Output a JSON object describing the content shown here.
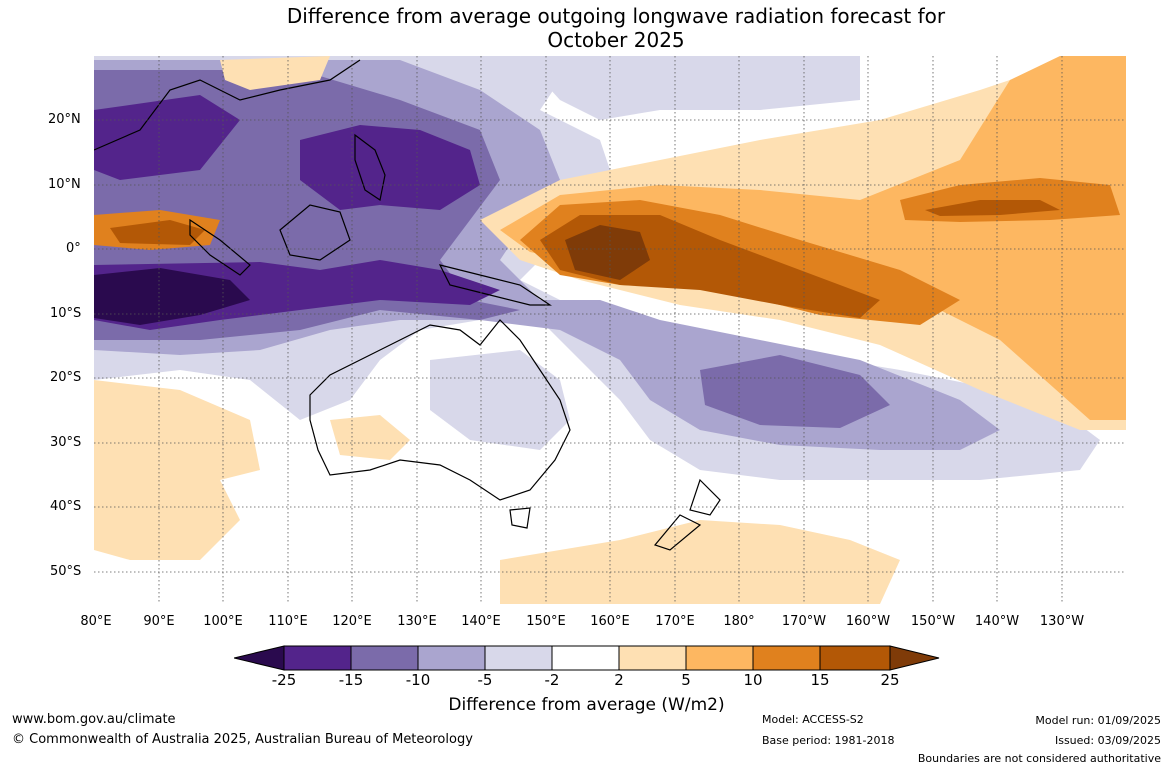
{
  "title_line1": "Difference from average outgoing longwave radiation forecast for",
  "title_line2": "October 2025",
  "lat_labels": [
    "20°N",
    "10°N",
    "0°",
    "10°S",
    "20°S",
    "30°S",
    "40°S",
    "50°S"
  ],
  "lon_labels": [
    "80°E",
    "90°E",
    "100°E",
    "110°E",
    "120°E",
    "130°E",
    "140°E",
    "150°E",
    "160°E",
    "170°E",
    "180°",
    "170°W",
    "160°W",
    "150°W",
    "140°W",
    "130°W"
  ],
  "colorbar": {
    "ticks": [
      "-25",
      "-15",
      "-10",
      "-5",
      "-2",
      "2",
      "5",
      "10",
      "15",
      "25"
    ],
    "colors": [
      "#2a0a4e",
      "#53248b",
      "#7b6baa",
      "#aaa5cf",
      "#d8d8ea",
      "#ffffff",
      "#fee0b3",
      "#fdb761",
      "#e0811e",
      "#b35806",
      "#7f3b08"
    ],
    "label": "Difference from average (W/m2)"
  },
  "footer": {
    "website": "www.bom.gov.au/climate",
    "copyright": "© Commonwealth of Australia 2025, Australian Bureau of Meteorology",
    "model": "Model: ACCESS-S2",
    "base_period": "Base period: 1981-2018",
    "model_run": "Model run: 01/09/2025",
    "issued": "Issued: 03/09/2025",
    "disclaimer": "Boundaries are not considered authoritative"
  }
}
